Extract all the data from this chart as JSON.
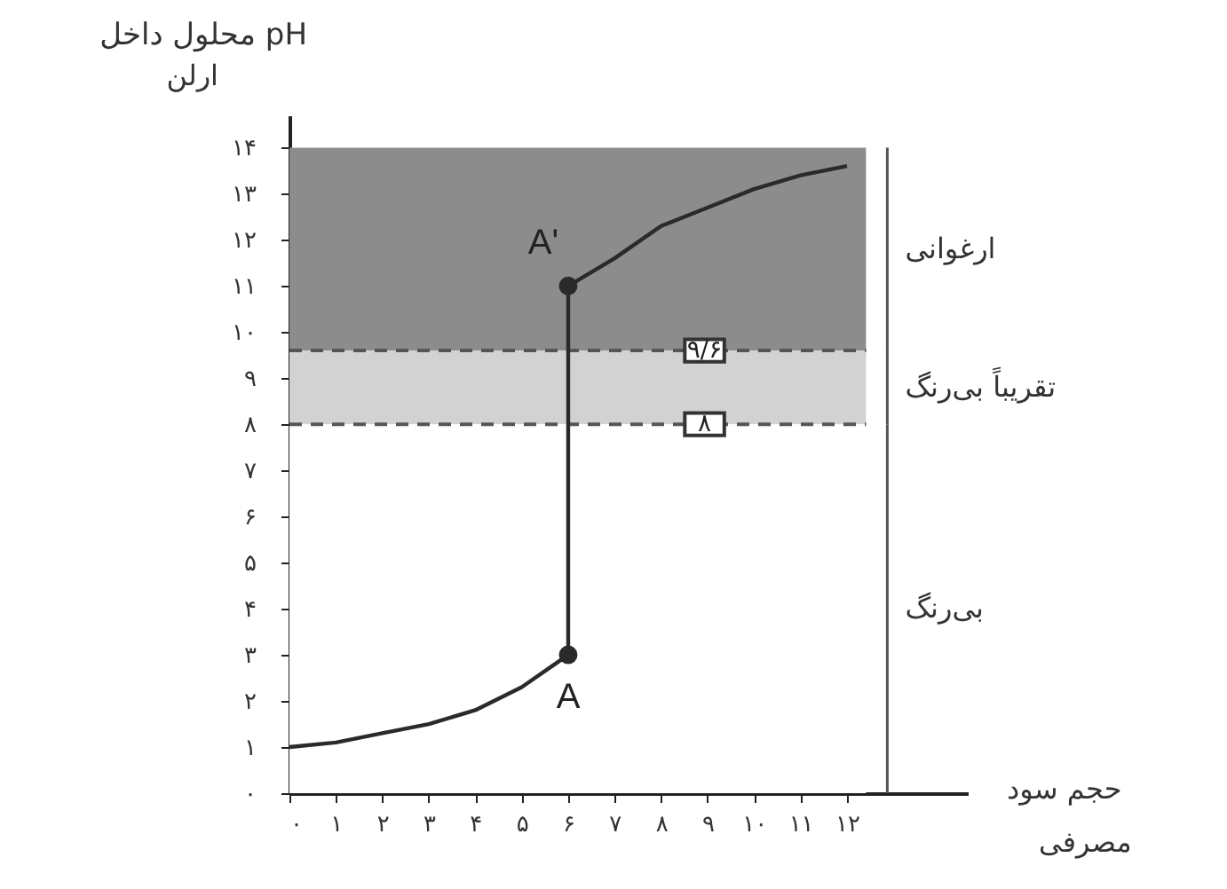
{
  "chart_data": {
    "type": "line",
    "ylabel": "pH محلول داخل ارلن",
    "xlabel": "حجم سود مصرفی",
    "xlim": [
      0,
      14.6
    ],
    "ylim": [
      0,
      14.7
    ],
    "xticks": [
      {
        "value": 0,
        "label": "۰"
      },
      {
        "value": 1,
        "label": "۱"
      },
      {
        "value": 2,
        "label": "۲"
      },
      {
        "value": 3,
        "label": "۳"
      },
      {
        "value": 4,
        "label": "۴"
      },
      {
        "value": 5,
        "label": "۵"
      },
      {
        "value": 6,
        "label": "۶"
      },
      {
        "value": 7,
        "label": "۷"
      },
      {
        "value": 8,
        "label": "۸"
      },
      {
        "value": 9,
        "label": "۹"
      },
      {
        "value": 10,
        "label": "۱۰"
      },
      {
        "value": 11,
        "label": "۱۱"
      },
      {
        "value": 12,
        "label": "۱۲"
      }
    ],
    "yticks": [
      {
        "value": 0,
        "label": "۰"
      },
      {
        "value": 1,
        "label": "۱"
      },
      {
        "value": 2,
        "label": "۲"
      },
      {
        "value": 3,
        "label": "۳"
      },
      {
        "value": 4,
        "label": "۴"
      },
      {
        "value": 5,
        "label": "۵"
      },
      {
        "value": 6,
        "label": "۶"
      },
      {
        "value": 7,
        "label": "۷"
      },
      {
        "value": 8,
        "label": "۸"
      },
      {
        "value": 9,
        "label": "۹"
      },
      {
        "value": 10,
        "label": "۱۰"
      },
      {
        "value": 11,
        "label": "۱۱"
      },
      {
        "value": 12,
        "label": "۱۲"
      },
      {
        "value": 13,
        "label": "۱۳"
      },
      {
        "value": 14,
        "label": "۱۴"
      }
    ],
    "series": [
      {
        "type": "line",
        "color": "#2a2a2a",
        "marker": "none",
        "x": [
          0,
          1,
          2,
          3,
          4,
          5,
          6,
          6,
          7,
          8,
          9,
          10,
          11,
          12
        ],
        "values": [
          1,
          1.1,
          1.3,
          1.5,
          1.8,
          2.3,
          3,
          11,
          11.6,
          12.3,
          12.7,
          13.1,
          13.4,
          13.6
        ]
      },
      {
        "type": "scatter",
        "color": "#2a2a2a",
        "marker": "circle",
        "x": [
          6,
          6
        ],
        "values": [
          3,
          11
        ]
      }
    ],
    "bands": [
      {
        "axis": "y",
        "from": 9.6,
        "to": 14,
        "label": "ارغوانی",
        "color": "#8c8c8c"
      },
      {
        "axis": "y",
        "from": 8,
        "to": 9.6,
        "label": "تقریباً بی‌رنگ",
        "color": "#d2d2d2"
      },
      {
        "axis": "y",
        "from": 0,
        "to": 8,
        "label": "بی‌رنگ",
        "color": "#ffffff"
      }
    ],
    "ref_lines": [
      {
        "axis": "y",
        "value": 9.6,
        "label": "۹/۶",
        "line_style": "dashed",
        "color": "#555555"
      },
      {
        "axis": "y",
        "value": 8,
        "label": "۸",
        "line_style": "dashed",
        "color": "#555555"
      }
    ],
    "annotations": [
      {
        "text": "A",
        "x": 6,
        "y": 3
      },
      {
        "text": "A'",
        "x": 6,
        "y": 11
      }
    ],
    "grid": false
  }
}
